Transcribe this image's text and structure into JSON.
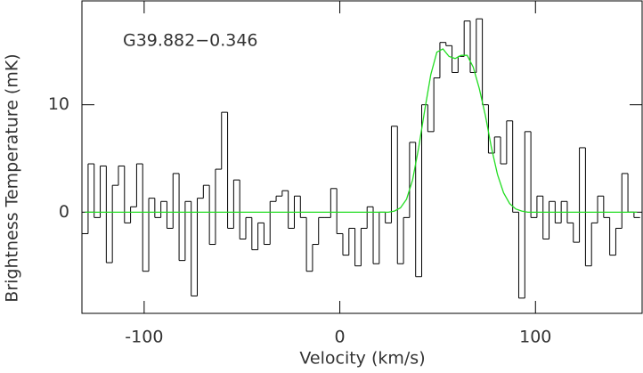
{
  "chart_data": {
    "type": "step",
    "annotation": "G39.882−0.346",
    "xlabel": "Velocity (km/s)",
    "ylabel": "Brightness Temperature (mK)",
    "xlim": [
      -131.8,
      154.5
    ],
    "ylim": [
      -9.42,
      19.67
    ],
    "xticks": [
      -100,
      0,
      100
    ],
    "yticks": [
      0,
      10
    ],
    "x": [
      -130.2,
      -127.1,
      -124,
      -120.9,
      -117.8,
      -114.7,
      -111.6,
      -108.5,
      -105.4,
      -102.3,
      -99.2,
      -96.1,
      -93,
      -89.9,
      -86.8,
      -83.7,
      -80.6,
      -77.5,
      -74.4,
      -71.3,
      -68.2,
      -65.1,
      -62,
      -58.9,
      -55.8,
      -52.7,
      -49.6,
      -46.5,
      -43.4,
      -40.3,
      -37.2,
      -34.1,
      -31,
      -27.9,
      -24.8,
      -21.7,
      -18.6,
      -15.5,
      -12.4,
      -9.3,
      -6.2,
      -3.1,
      0,
      3.1,
      6.2,
      9.3,
      12.4,
      15.5,
      18.6,
      21.7,
      24.8,
      27.9,
      31,
      34.1,
      37.2,
      40.3,
      43.4,
      46.5,
      49.6,
      52.7,
      55.8,
      58.9,
      62,
      65.1,
      68.2,
      71.3,
      74.4,
      77.5,
      80.6,
      83.7,
      86.8,
      89.9,
      93,
      96.1,
      99.2,
      102.3,
      105.4,
      108.5,
      111.6,
      114.7,
      117.8,
      120.9,
      124,
      127.1,
      130.2,
      133.3,
      136.4,
      139.5,
      142.6,
      145.7,
      148.8,
      151.9
    ],
    "series": [
      {
        "color": "#000000",
        "values": [
          -2,
          4.5,
          -0.5,
          4.3,
          -4.7,
          2.5,
          4.3,
          -1,
          0.5,
          4.5,
          -5.5,
          1.3,
          -0.5,
          1,
          -1.5,
          3.6,
          -4.5,
          1,
          -7.8,
          1.3,
          2.5,
          -3,
          4,
          9.3,
          -1.5,
          3,
          -2.5,
          -0.5,
          -3.5,
          -1,
          -3,
          1,
          1.5,
          2,
          -1.5,
          1.5,
          -0.5,
          -5.5,
          -3,
          -0.5,
          -0.5,
          2.2,
          -2,
          -4,
          -1.5,
          -5,
          -1.5,
          0.5,
          -4.8,
          0,
          -1,
          8,
          -4.8,
          -0.5,
          6.5,
          -6,
          10,
          7.5,
          12.5,
          15.8,
          15.5,
          13,
          14.5,
          17.8,
          13,
          18,
          10,
          5.5,
          7,
          4.5,
          8.5,
          0,
          -8,
          7.5,
          -0.5,
          1.5,
          -2.5,
          1,
          -1,
          1,
          -1,
          -2.8,
          6,
          -5,
          -1,
          1.5,
          -0.5,
          -4,
          -1.5,
          3.6,
          0,
          -0.5
        ]
      },
      {
        "color": "#22dd22",
        "values": [
          0,
          0,
          0,
          0,
          0,
          0,
          0,
          0,
          0,
          0,
          0,
          0,
          0,
          0,
          0,
          0,
          0,
          0,
          0,
          0,
          0,
          0,
          0,
          0,
          0,
          0,
          0,
          0,
          0,
          0,
          0,
          0,
          0,
          0,
          0,
          0,
          0,
          0,
          0,
          0,
          0,
          0,
          0,
          0,
          0,
          0,
          0,
          0,
          0,
          0,
          0,
          0.1,
          0.4,
          1.2,
          3,
          6,
          9.5,
          12.8,
          14.9,
          15.2,
          14.5,
          14.3,
          14.6,
          14.6,
          13.5,
          11.5,
          9,
          6,
          3.5,
          1.8,
          0.8,
          0.3,
          0.1,
          0,
          0,
          0,
          0,
          0,
          0,
          0,
          0,
          0,
          0,
          0,
          0,
          0,
          0,
          0,
          0,
          0,
          0,
          0
        ]
      }
    ]
  }
}
